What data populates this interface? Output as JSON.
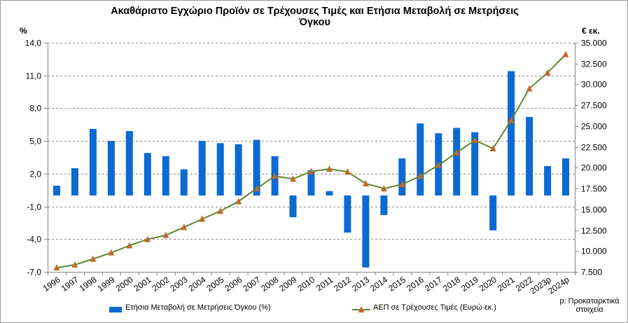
{
  "title_line1": "Ακαθάριστο Εγχώριο Προϊόν σε Τρέχουσες Τιμές και Ετήσια Μεταβολή σε Μετρήσεις",
  "title_line2": "Όγκου",
  "left_unit": "%",
  "right_unit": "€ εκ.",
  "note_line1": "p: Προκαταρκτικά",
  "note_line2": "στοιχεία",
  "colors": {
    "bars": "#0b6ad3",
    "line": "#5a8a2e",
    "markers": "#c0672a",
    "grid": "#8c8c8c",
    "axis": "#868686"
  },
  "chart_data": {
    "type": "bar+line",
    "categories": [
      "1996",
      "1997",
      "1998",
      "1999",
      "2000",
      "2001",
      "2002",
      "2003",
      "2004",
      "2005",
      "2006",
      "2007",
      "2008",
      "2009",
      "2010",
      "2011",
      "2012",
      "2013",
      "2014",
      "2015",
      "2016",
      "2017",
      "2018",
      "2019",
      "2020",
      "2021",
      "2022",
      "2023p",
      "2024p"
    ],
    "left_axis": {
      "min": -7.0,
      "max": 14.0,
      "step": 3.0,
      "ticks": [
        "-7,0",
        "-4,0",
        "-1,0",
        "2,0",
        "5,0",
        "8,0",
        "11,0",
        "14,0"
      ]
    },
    "right_axis": {
      "min": 7500,
      "max": 35000,
      "step": 2500,
      "ticks": [
        "7.500",
        "10.000",
        "12.500",
        "15.000",
        "17.500",
        "20.000",
        "22.500",
        "25.000",
        "27.500",
        "30.000",
        "32.500",
        "35.000"
      ]
    },
    "series": [
      {
        "name": "Ετήσια Μεταβολή σε Μετρήσεις Όγκου (%)",
        "type": "bar",
        "axis": "left",
        "values": [
          0.9,
          2.5,
          6.1,
          5.0,
          5.9,
          3.9,
          3.6,
          2.4,
          5.0,
          4.8,
          4.7,
          5.1,
          3.6,
          -2.0,
          2.3,
          0.4,
          -3.4,
          -6.6,
          -1.8,
          3.4,
          6.6,
          5.7,
          6.2,
          5.8,
          -3.2,
          11.4,
          7.2,
          2.7,
          3.4
        ]
      },
      {
        "name": "ΑΕΠ σε Τρέχουσες Τιμές (Ευρώ εκ.)",
        "type": "line",
        "axis": "right",
        "values": [
          8000,
          8350,
          9050,
          9800,
          10650,
          11400,
          11900,
          12850,
          13850,
          14800,
          15950,
          17500,
          19000,
          18650,
          19550,
          19850,
          19500,
          18100,
          17500,
          18000,
          19000,
          20300,
          21800,
          23300,
          22300,
          25700,
          29500,
          31400,
          33600
        ]
      }
    ]
  }
}
